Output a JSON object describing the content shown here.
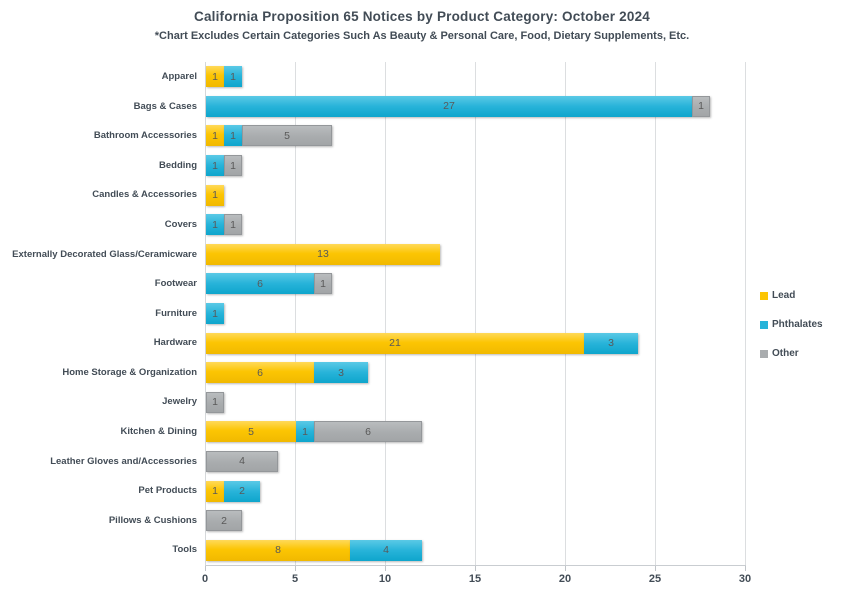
{
  "header": {
    "title": "California Proposition 65 Notices by Product Category: October 2024",
    "subtitle": "*Chart Excludes Certain Categories Such As Beauty & Personal Care, Food, Dietary Supplements, Etc."
  },
  "colors": {
    "lead": "#FCC503",
    "phthalates": "#27B3D9",
    "other": "#A9ACAE",
    "text": "#424C56",
    "value_label": "#595959",
    "gridline": "#DCDEE0"
  },
  "chart_data": {
    "type": "bar",
    "orientation": "horizontal",
    "stacked": true,
    "title": "California Proposition 65 Notices by Product Category: October 2024",
    "subtitle": "*Chart Excludes Certain Categories Such As Beauty & Personal Care, Food, Dietary Supplements, Etc.",
    "categories": [
      "Apparel",
      "Bags & Cases",
      "Bathroom Accessories",
      "Bedding",
      "Candles & Accessories",
      "Covers",
      "Externally Decorated Glass/Ceramicware",
      "Footwear",
      "Furniture",
      "Hardware",
      "Home Storage & Organization",
      "Jewelry",
      "Kitchen & Dining",
      "Leather Gloves and/Accessories",
      "Pet Products",
      "Pillows & Cushions",
      "Tools"
    ],
    "series": [
      {
        "name": "Lead",
        "color": "#FCC503",
        "values": [
          1,
          0,
          1,
          0,
          1,
          0,
          13,
          0,
          0,
          21,
          6,
          0,
          5,
          0,
          1,
          0,
          8
        ]
      },
      {
        "name": "Phthalates",
        "color": "#27B3D9",
        "values": [
          1,
          27,
          1,
          1,
          0,
          1,
          0,
          6,
          1,
          3,
          3,
          0,
          1,
          0,
          2,
          0,
          4
        ]
      },
      {
        "name": "Other",
        "color": "#A9ACAE",
        "values": [
          0,
          1,
          5,
          1,
          0,
          1,
          0,
          1,
          0,
          0,
          0,
          1,
          6,
          4,
          0,
          2,
          0
        ]
      }
    ],
    "xlim": [
      0,
      30
    ],
    "xticks": [
      0,
      5,
      10,
      15,
      20,
      25,
      30
    ],
    "grid": true,
    "data_labels": true,
    "legend_position": "right"
  }
}
